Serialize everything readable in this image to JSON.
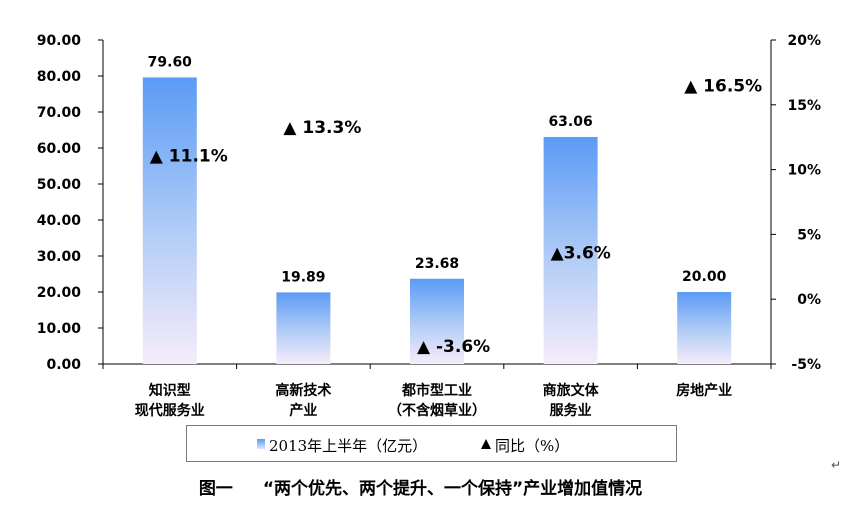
{
  "chart_data": {
    "type": "bar",
    "categories": [
      [
        "知识型",
        "现代服务业"
      ],
      [
        "高新技术",
        "产业"
      ],
      [
        "都市型工业",
        "（不含烟草业）"
      ],
      [
        "商旅文体",
        "服务业"
      ],
      [
        "房地产业"
      ]
    ],
    "series": [
      {
        "name": "2013年上半年（亿元）",
        "type": "bar",
        "axis": "left",
        "values": [
          79.6,
          19.89,
          23.68,
          63.06,
          20.0
        ],
        "labels": [
          "79.60",
          "19.89",
          "23.68",
          "63.06",
          "20.00"
        ]
      },
      {
        "name": "同比（%）",
        "type": "scatter",
        "marker": "triangle",
        "axis": "right",
        "values": [
          11.1,
          13.3,
          -3.6,
          3.6,
          16.5
        ],
        "labels": [
          "▲ 11.1%",
          "▲ 13.3%",
          "▲ -3.6%",
          "▲3.6%",
          "▲ 16.5%"
        ]
      }
    ],
    "y_left": {
      "range": [
        0,
        90
      ],
      "ticks": [
        "0.00",
        "10.00",
        "20.00",
        "30.00",
        "40.00",
        "50.00",
        "60.00",
        "70.00",
        "80.00",
        "90.00"
      ]
    },
    "y_right": {
      "range": [
        -5,
        20
      ],
      "ticks": [
        "-5%",
        "0%",
        "5%",
        "10%",
        "15%",
        "20%"
      ]
    },
    "grid": false,
    "legend_position": "bottom",
    "title": ""
  },
  "legend": {
    "bar_label": "2013年上半年（亿元）",
    "marker_label": "同比（%）"
  },
  "caption": {
    "figure_no": "图一",
    "text": "“两个优先、两个提升、一个保持”产业增加值情况"
  },
  "colors": {
    "bar_top": "#5b9bf5",
    "bar_bottom": "#f3e8f8",
    "marker": "#000000"
  }
}
